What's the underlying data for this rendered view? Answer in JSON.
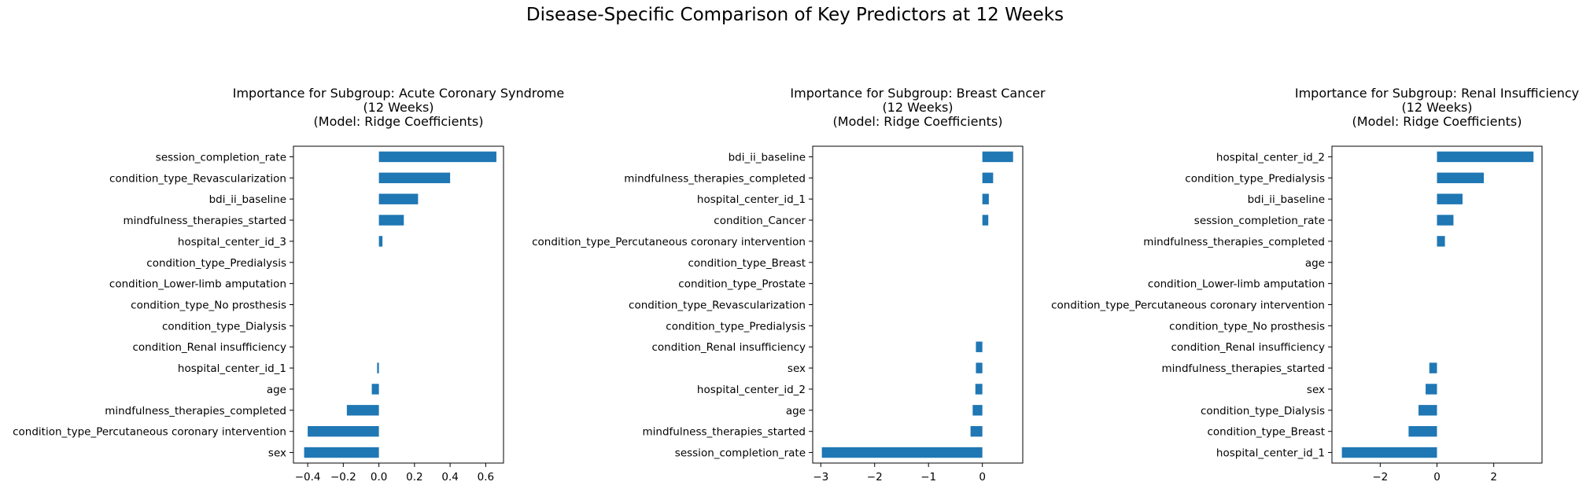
{
  "figure": {
    "suptitle": "Disease-Specific Comparison of Key Predictors at 12 Weeks"
  },
  "colors": {
    "bar": "#1f77b4",
    "axis": "#000000",
    "background": "#ffffff"
  },
  "chart_data": [
    {
      "type": "bar",
      "orientation": "horizontal",
      "title": "Importance for Subgroup: Acute Coronary Syndrome\n(12 Weeks)\n(Model: Ridge Coefficients)",
      "xlim": [
        -0.48,
        0.7
      ],
      "xticks": [
        -0.4,
        -0.2,
        0.0,
        0.2,
        0.4,
        0.6
      ],
      "xticklabels": [
        "−0.4",
        "−0.2",
        "0.0",
        "0.2",
        "0.4",
        "0.6"
      ],
      "grid": false,
      "legend": "none",
      "categories": [
        "session_completion_rate",
        "condition_type_Revascularization",
        "bdi_ii_baseline",
        "mindfulness_therapies_started",
        "hospital_center_id_3",
        "condition_type_Predialysis",
        "condition_Lower-limb amputation",
        "condition_type_No prosthesis",
        "condition_type_Dialysis",
        "condition_Renal insufficiency",
        "hospital_center_id_1",
        "age",
        "mindfulness_therapies_completed",
        "condition_type_Percutaneous coronary intervention",
        "sex"
      ],
      "values": [
        0.66,
        0.4,
        0.22,
        0.14,
        0.02,
        0.0,
        0.0,
        0.0,
        0.0,
        0.0,
        -0.01,
        -0.04,
        -0.18,
        -0.4,
        -0.42
      ]
    },
    {
      "type": "bar",
      "orientation": "horizontal",
      "title": "Importance for Subgroup: Breast Cancer\n(12 Weeks)\n(Model: Ridge Coefficients)",
      "xlim": [
        -3.15,
        0.75
      ],
      "xticks": [
        -3,
        -2,
        -1,
        0
      ],
      "xticklabels": [
        "−3",
        "−2",
        "−1",
        "0"
      ],
      "grid": false,
      "legend": "none",
      "categories": [
        "bdi_ii_baseline",
        "mindfulness_therapies_completed",
        "hospital_center_id_1",
        "condition_Cancer",
        "condition_type_Percutaneous coronary intervention",
        "condition_type_Breast",
        "condition_type_Prostate",
        "condition_type_Revascularization",
        "condition_type_Predialysis",
        "condition_Renal insufficiency",
        "sex",
        "hospital_center_id_2",
        "age",
        "mindfulness_therapies_started",
        "session_completion_rate"
      ],
      "values": [
        0.57,
        0.2,
        0.12,
        0.11,
        0.0,
        0.0,
        0.0,
        0.0,
        0.0,
        -0.12,
        -0.12,
        -0.13,
        -0.18,
        -0.22,
        -2.98
      ]
    },
    {
      "type": "bar",
      "orientation": "horizontal",
      "title": "Importance for Subgroup: Renal Insufficiency\n(12 Weeks)\n(Model: Ridge Coefficients)",
      "xlim": [
        -3.7,
        3.7
      ],
      "xticks": [
        -2,
        0,
        2
      ],
      "xticklabels": [
        "−2",
        "0",
        "2"
      ],
      "grid": false,
      "legend": "none",
      "categories": [
        "hospital_center_id_2",
        "condition_type_Predialysis",
        "bdi_ii_baseline",
        "session_completion_rate",
        "mindfulness_therapies_completed",
        "age",
        "condition_Lower-limb amputation",
        "condition_type_Percutaneous coronary intervention",
        "condition_type_No prosthesis",
        "condition_Renal insufficiency",
        "mindfulness_therapies_started",
        "sex",
        "condition_type_Dialysis",
        "condition_type_Breast",
        "hospital_center_id_1"
      ],
      "values": [
        3.4,
        1.65,
        0.9,
        0.58,
        0.28,
        0.0,
        0.0,
        0.0,
        0.0,
        0.0,
        -0.27,
        -0.4,
        -0.65,
        -1.0,
        -3.35
      ]
    }
  ]
}
